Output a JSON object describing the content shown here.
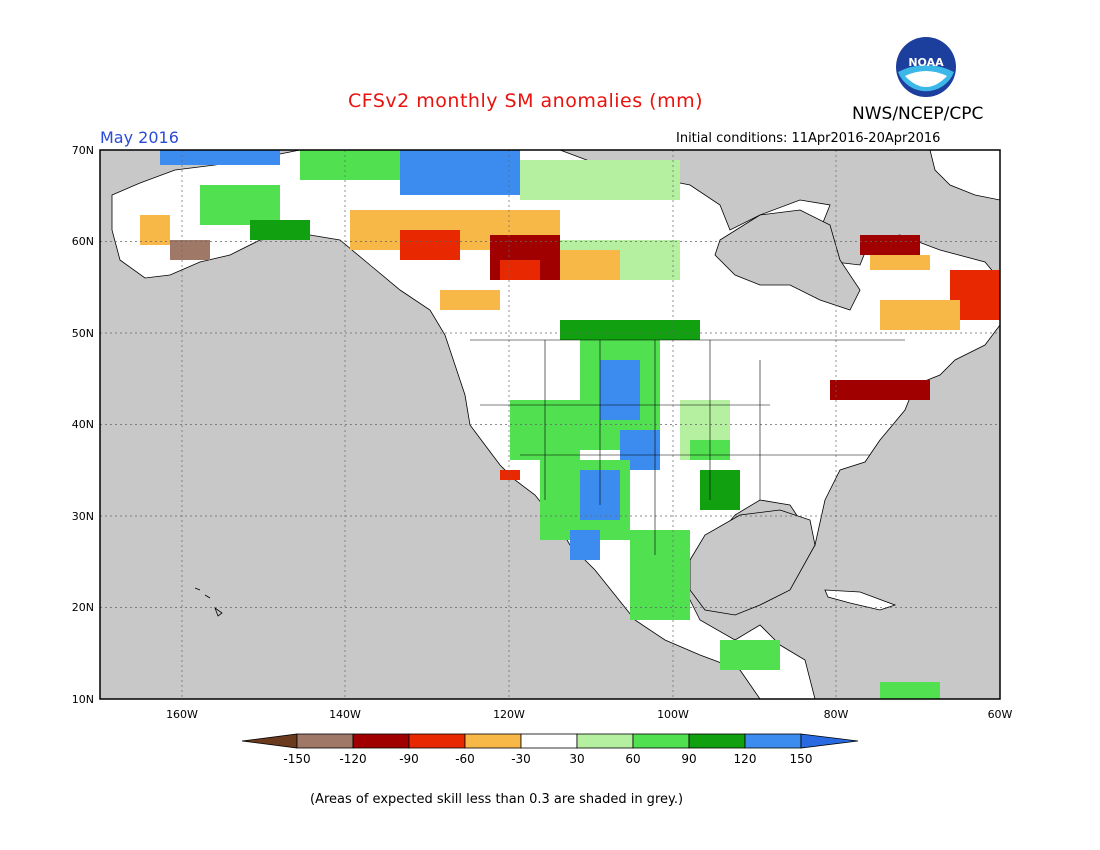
{
  "header": {
    "title": "CFSv2 monthly SM anomalies (mm)",
    "agency": "NWS/NCEP/CPC",
    "month": "May 2016",
    "initial_conditions": "Initial conditions: 11Apr2016-20Apr2016",
    "logo_text": "NOAA"
  },
  "colors": {
    "title": "#e8120e",
    "month": "#2a4bd7",
    "ocean": "#c8c8c8",
    "land": "#ffffff"
  },
  "axes": {
    "lat_labels": [
      "70N",
      "60N",
      "50N",
      "40N",
      "30N",
      "20N",
      "10N"
    ],
    "lon_labels": [
      "160W",
      "140W",
      "120W",
      "100W",
      "80W",
      "60W"
    ]
  },
  "colorbar": {
    "ticks": [
      "-150",
      "-120",
      "-90",
      "-60",
      "-30",
      "30",
      "60",
      "90",
      "120",
      "150"
    ],
    "colors": [
      "#6b3a1e",
      "#a07868",
      "#a00000",
      "#e82800",
      "#f8b848",
      "#ffffff",
      "#b4f0a0",
      "#50e050",
      "#10a010",
      "#3c8cf0",
      "#2a6ae0"
    ]
  },
  "footnote": "(Areas of expected skill less than 0.3 are shaded in grey.)"
}
